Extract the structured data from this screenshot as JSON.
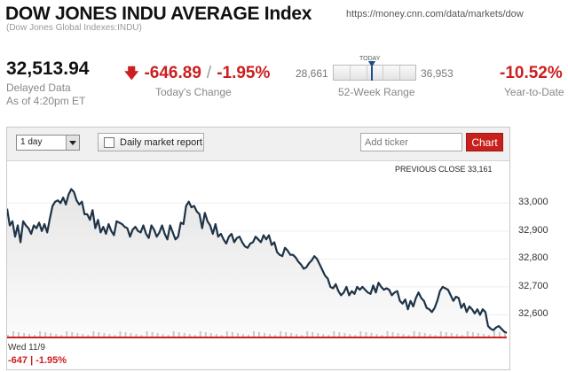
{
  "header": {
    "title": "DOW JONES INDU AVERAGE Index",
    "subtitle": "(Dow Jones Global Indexes:INDU)",
    "url": "https://money.cnn.com/data/markets/dow"
  },
  "quote": {
    "price": "32,513.94",
    "delayed_label": "Delayed Data",
    "as_of": "As of 4:20pm ET",
    "change_points": "-646.89",
    "change_percent": "-1.95%",
    "change_label": "Today's Change",
    "range_low": "28,661",
    "range_high": "36,953",
    "today_label": "TODAY",
    "range_position": 0.47,
    "range_label": "52-Week Range",
    "ytd": "-10.52%",
    "ytd_label": "Year-to-Date",
    "down_color": "#cc1f1f"
  },
  "toolbar": {
    "period": "1 day",
    "daily_report": "Daily market report",
    "ticker_placeholder": "Add ticker",
    "chart_button": "Chart",
    "chart_button_color": "#c8211d"
  },
  "chart_data": {
    "type": "line",
    "previous_close_label": "PREVIOUS CLOSE 33,161",
    "previous_close": 33161,
    "ylim": [
      32500,
      33150
    ],
    "yticks": [
      "33,000",
      "32,900",
      "32,800",
      "32,700",
      "32,600"
    ],
    "ytick_values": [
      33000,
      32900,
      32800,
      32700,
      32600
    ],
    "xlabel": "Wed 11/9",
    "summary": "-647 | -1.95%",
    "line_color": "#1e3347",
    "series": [
      {
        "values": [
          32980,
          32920,
          32935,
          32880,
          32920,
          32860,
          32935,
          32920,
          32910,
          32890,
          32920,
          32910,
          32930,
          32900,
          32925,
          32895,
          32945,
          32990,
          33005,
          33010,
          33000,
          33020,
          32995,
          33030,
          33050,
          33040,
          33010,
          32995,
          33005,
          32960,
          32960,
          32940,
          32975,
          32910,
          32940,
          32895,
          32915,
          32890,
          32925,
          32900,
          32885,
          32935,
          32930,
          32925,
          32915,
          32910,
          32880,
          32905,
          32915,
          32900,
          32895,
          32920,
          32890,
          32875,
          32920,
          32905,
          32880,
          32895,
          32920,
          32890,
          32870,
          32920,
          32895,
          32870,
          32880,
          32930,
          32925,
          32990,
          33005,
          32985,
          32990,
          32970,
          32960,
          32910,
          32965,
          32935,
          32920,
          32890,
          32925,
          32880,
          32890,
          32870,
          32855,
          32880,
          32890,
          32860,
          32875,
          32880,
          32860,
          32845,
          32840,
          32855,
          32860,
          32880,
          32870,
          32860,
          32885,
          32870,
          32885,
          32850,
          32860,
          32825,
          32815,
          32810,
          32840,
          32830,
          32815,
          32815,
          32805,
          32790,
          32780,
          32765,
          32770,
          32785,
          32795,
          32810,
          32800,
          32780,
          32760,
          32740,
          32730,
          32700,
          32695,
          32710,
          32685,
          32670,
          32680,
          32700,
          32670,
          32685,
          32675,
          32700,
          32690,
          32700,
          32690,
          32680,
          32675,
          32705,
          32680,
          32715,
          32700,
          32690,
          32695,
          32690,
          32670,
          32680,
          32685,
          32650,
          32640,
          32655,
          32620,
          32650,
          32630,
          32660,
          32680,
          32660,
          32650,
          32625,
          32620,
          32610,
          32625,
          32650,
          32685,
          32700,
          32695,
          32690,
          32670,
          32650,
          32665,
          32660,
          32625,
          32640,
          32610,
          32630,
          32620,
          32605,
          32620,
          32600,
          32620,
          32610,
          32560,
          32550,
          32545,
          32555,
          32560,
          32550,
          32540,
          32535
        ]
      }
    ]
  }
}
